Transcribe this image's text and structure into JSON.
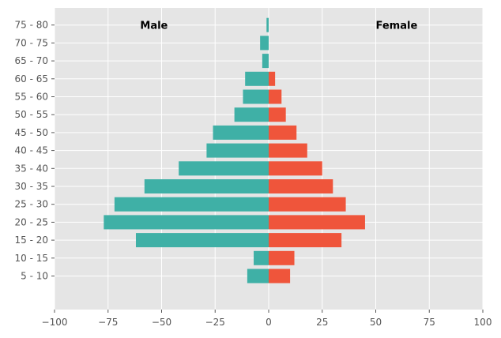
{
  "chart_data": {
    "type": "bar",
    "orientation": "horizontal",
    "title": "",
    "xlabel": "",
    "ylabel": "",
    "categories": [
      "5 - 10",
      "10 - 15",
      "15 - 20",
      "20 - 25",
      "25 - 30",
      "30 - 35",
      "35 - 40",
      "40 - 45",
      "45 - 50",
      "50 - 55",
      "55 - 60",
      "60 - 65",
      "65 - 70",
      "70 - 75",
      "75 - 80"
    ],
    "series": [
      {
        "color": "#3fb0a6",
        "values": [
          -10,
          -7,
          -62,
          -77,
          -72,
          -58,
          -42,
          -29,
          -26,
          -16,
          -12,
          -11,
          -3,
          -4,
          -1
        ]
      },
      {
        "color": "#ef553b",
        "values": [
          10,
          12,
          34,
          45,
          36,
          30,
          25,
          18,
          13,
          8,
          6,
          3,
          0,
          0,
          0
        ]
      }
    ],
    "xlim": [
      -100,
      100
    ],
    "xticks": [
      -100,
      -75,
      -50,
      -25,
      0,
      25,
      50,
      75,
      100
    ],
    "grid": true,
    "background": "#e5e5e5",
    "annotations": [
      {
        "text": "Male",
        "x": -60,
        "y": "75 - 80"
      },
      {
        "text": "Female",
        "x": 50,
        "y": "75 - 80"
      }
    ]
  }
}
